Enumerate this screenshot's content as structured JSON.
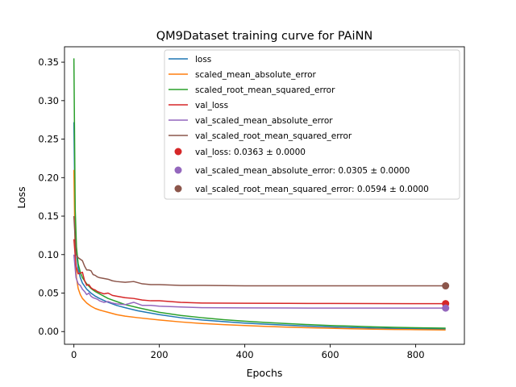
{
  "chart_data": {
    "type": "line",
    "title": "QM9Dataset training curve for PAiNN",
    "xlabel": "Epochs",
    "ylabel": "Loss",
    "xlim": [
      -22,
      914
    ],
    "ylim": [
      -0.0165,
      0.37
    ],
    "grid": false,
    "legend_position": "upper-right",
    "xticks": [
      {
        "value": 0,
        "label": "0"
      },
      {
        "value": 200,
        "label": "200"
      },
      {
        "value": 400,
        "label": "400"
      },
      {
        "value": 600,
        "label": "600"
      },
      {
        "value": 800,
        "label": "800"
      }
    ],
    "yticks": [
      {
        "value": 0.0,
        "label": "0.00"
      },
      {
        "value": 0.05,
        "label": "0.05"
      },
      {
        "value": 0.1,
        "label": "0.10"
      },
      {
        "value": 0.15,
        "label": "0.15"
      },
      {
        "value": 0.2,
        "label": "0.20"
      },
      {
        "value": 0.25,
        "label": "0.25"
      },
      {
        "value": 0.3,
        "label": "0.30"
      },
      {
        "value": 0.35,
        "label": "0.35"
      }
    ],
    "series": [
      {
        "name": "loss",
        "color": "#1f77b4",
        "x": [
          0,
          3,
          6,
          10,
          15,
          20,
          30,
          40,
          50,
          60,
          80,
          100,
          120,
          150,
          200,
          250,
          300,
          350,
          400,
          450,
          500,
          550,
          600,
          650,
          700,
          750,
          800,
          870
        ],
        "y": [
          0.272,
          0.14,
          0.102,
          0.082,
          0.07,
          0.063,
          0.055,
          0.05,
          0.046,
          0.043,
          0.038,
          0.034,
          0.031,
          0.027,
          0.022,
          0.018,
          0.015,
          0.013,
          0.011,
          0.0095,
          0.0082,
          0.007,
          0.006,
          0.0052,
          0.0046,
          0.0041,
          0.0037,
          0.0033
        ]
      },
      {
        "name": "scaled_mean_absolute_error",
        "color": "#ff7f0e",
        "x": [
          0,
          3,
          6,
          10,
          15,
          20,
          30,
          40,
          50,
          60,
          80,
          100,
          120,
          150,
          200,
          250,
          300,
          350,
          400,
          450,
          500,
          550,
          600,
          650,
          700,
          750,
          800,
          870
        ],
        "y": [
          0.21,
          0.1,
          0.07,
          0.056,
          0.048,
          0.043,
          0.037,
          0.033,
          0.03,
          0.028,
          0.025,
          0.022,
          0.02,
          0.018,
          0.015,
          0.0125,
          0.0105,
          0.009,
          0.0078,
          0.0067,
          0.0058,
          0.005,
          0.0043,
          0.0037,
          0.0032,
          0.0028,
          0.0025,
          0.0021
        ]
      },
      {
        "name": "scaled_root_mean_squared_error",
        "color": "#2ca02c",
        "x": [
          0,
          3,
          6,
          10,
          15,
          20,
          30,
          40,
          50,
          60,
          80,
          100,
          120,
          150,
          200,
          250,
          300,
          350,
          400,
          450,
          500,
          550,
          600,
          650,
          700,
          750,
          800,
          870
        ],
        "y": [
          0.355,
          0.16,
          0.11,
          0.088,
          0.077,
          0.07,
          0.062,
          0.056,
          0.052,
          0.049,
          0.043,
          0.039,
          0.035,
          0.031,
          0.025,
          0.021,
          0.018,
          0.0155,
          0.0135,
          0.0118,
          0.0103,
          0.009,
          0.0079,
          0.007,
          0.0062,
          0.0055,
          0.005,
          0.0044
        ]
      },
      {
        "name": "val_loss",
        "color": "#d62728",
        "x": [
          0,
          5,
          10,
          15,
          20,
          25,
          30,
          35,
          40,
          45,
          50,
          55,
          60,
          70,
          80,
          90,
          100,
          120,
          140,
          160,
          180,
          200,
          250,
          300,
          400,
          500,
          600,
          700,
          800,
          870
        ],
        "y": [
          0.12,
          0.085,
          0.075,
          0.076,
          0.077,
          0.066,
          0.06,
          0.061,
          0.057,
          0.055,
          0.054,
          0.052,
          0.051,
          0.049,
          0.05,
          0.047,
          0.046,
          0.044,
          0.043,
          0.041,
          0.04,
          0.04,
          0.038,
          0.037,
          0.0368,
          0.0366,
          0.0365,
          0.0364,
          0.0363,
          0.0363
        ]
      },
      {
        "name": "val_scaled_mean_absolute_error",
        "color": "#9467bd",
        "x": [
          0,
          5,
          10,
          15,
          20,
          25,
          30,
          35,
          40,
          45,
          50,
          55,
          60,
          70,
          80,
          90,
          100,
          120,
          140,
          160,
          180,
          200,
          250,
          300,
          400,
          500,
          600,
          700,
          800,
          870
        ],
        "y": [
          0.1,
          0.07,
          0.062,
          0.06,
          0.055,
          0.052,
          0.048,
          0.05,
          0.046,
          0.044,
          0.043,
          0.042,
          0.04,
          0.038,
          0.039,
          0.037,
          0.036,
          0.035,
          0.038,
          0.034,
          0.034,
          0.033,
          0.032,
          0.031,
          0.0308,
          0.0306,
          0.0305,
          0.0305,
          0.0305,
          0.0305
        ]
      },
      {
        "name": "val_scaled_root_mean_squared_error",
        "color": "#8c564b",
        "x": [
          0,
          5,
          10,
          15,
          20,
          25,
          30,
          35,
          40,
          45,
          50,
          55,
          60,
          70,
          80,
          90,
          100,
          120,
          140,
          160,
          180,
          200,
          250,
          300,
          400,
          500,
          600,
          700,
          800,
          870
        ],
        "y": [
          0.15,
          0.1,
          0.096,
          0.094,
          0.092,
          0.085,
          0.08,
          0.08,
          0.079,
          0.074,
          0.073,
          0.071,
          0.07,
          0.069,
          0.068,
          0.066,
          0.065,
          0.064,
          0.065,
          0.062,
          0.061,
          0.061,
          0.06,
          0.06,
          0.0595,
          0.0594,
          0.0594,
          0.0594,
          0.0594,
          0.0594
        ]
      }
    ],
    "markers": [
      {
        "name": "val_loss: 0.0363 ± 0.0000",
        "x": 870,
        "y": 0.0363,
        "color": "#d62728"
      },
      {
        "name": "val_scaled_mean_absolute_error: 0.0305 ± 0.0000",
        "x": 870,
        "y": 0.0305,
        "color": "#9467bd"
      },
      {
        "name": "val_scaled_root_mean_squared_error: 0.0594 ± 0.0000",
        "x": 870,
        "y": 0.0594,
        "color": "#8c564b"
      }
    ]
  }
}
